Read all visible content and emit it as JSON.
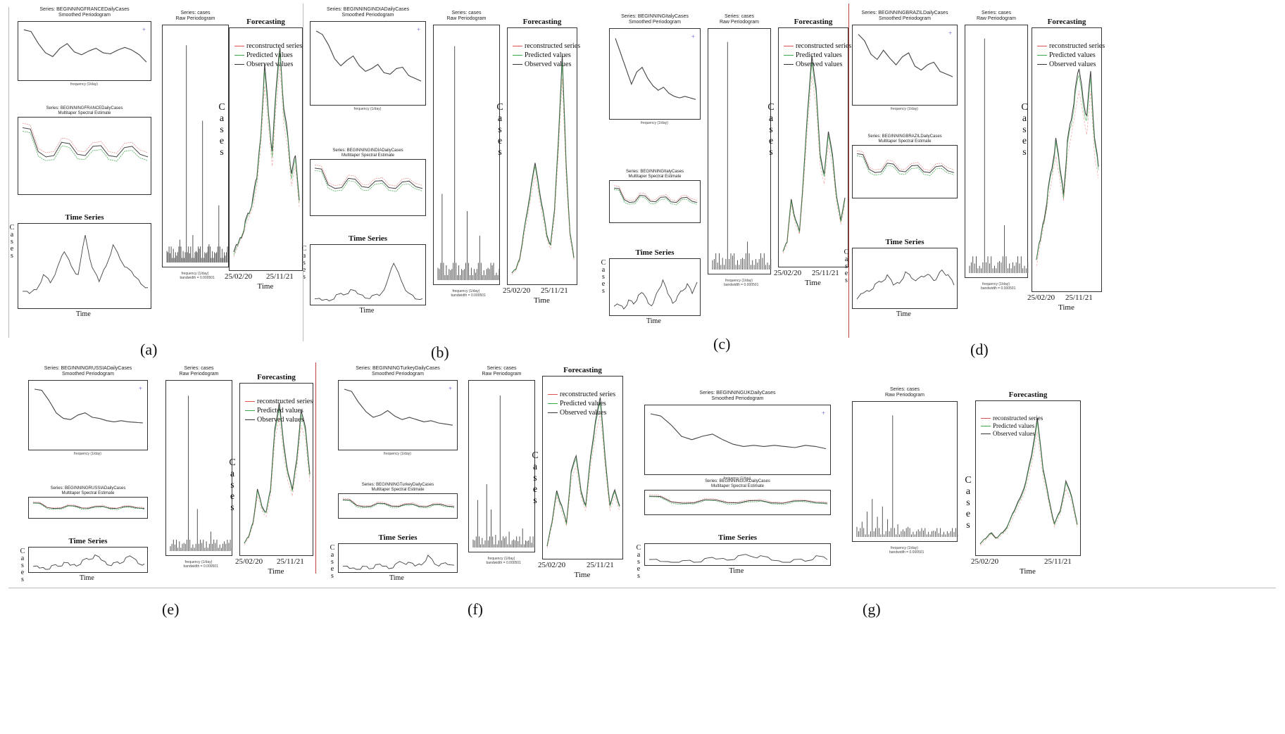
{
  "captions": [
    "(a)",
    "(b)",
    "(c)",
    "(d)",
    "(e)",
    "(f)",
    "(g)"
  ],
  "series_titles": {
    "a": "Series: BEGINNINGFRANCEDailyCases",
    "b": "Series: BEGINNINGINDIADailyCases",
    "c": "Series: BEGINNINGItalyCases",
    "d": "Series: BEGINNINGBRAZILDailyCases",
    "e": "Series: BEGINNINGRUSSIADailyCases",
    "f": "Series: BEGINNINGTurkeyDailyCases",
    "g": "Series: BEGINNINGUKDailyCases"
  },
  "labels": {
    "smoothed": "Smoothed Periodogram",
    "multitaper": "Multitaper Spectral Estimate",
    "raw_series": "Series: cases",
    "raw": "Raw Periodogram",
    "forecasting": "Forecasting",
    "time_series": "Time Series",
    "time": "Time",
    "cases_letters": [
      "C",
      "a",
      "s",
      "e",
      "s"
    ],
    "freq": "frequency (1/day)",
    "bandwidth_raw": "bandwidth = 0.000501",
    "start_date": "25/02/20",
    "end_date": "25/11/21"
  },
  "legend": [
    {
      "label": "reconstructed series",
      "color": "#e05050"
    },
    {
      "label": "Predicted values",
      "color": "#3aa84a"
    },
    {
      "label": "Observed values",
      "color": "#333333"
    }
  ],
  "colors": {
    "observed": "#444444",
    "predicted": "#3aa84a",
    "reconstructed": "#e05050",
    "bound": "#e88a8a"
  },
  "chart_data": [
    {
      "panel": "a",
      "type": "line",
      "description": "smoothed periodogram, multitaper estimate, raw periodogram, time series and forecast for France",
      "smoothed": [
        10,
        9.6,
        7,
        5,
        4.2,
        6,
        7,
        5.2,
        4.6,
        5.4,
        6,
        5,
        4.8,
        5.6,
        6.2,
        5.6,
        4.6,
        3
      ],
      "raw_peaks": [
        0.5,
        0.4,
        0.6,
        0.3,
        1,
        0.5,
        9.5,
        0.4,
        1.2,
        0.5,
        0.6,
        6.2,
        0.4,
        0.8,
        0.5,
        0.4,
        2.5,
        0.6,
        0.3
      ],
      "series": [
        2,
        2,
        3,
        5,
        4,
        6,
        9,
        7,
        5,
        12,
        6,
        4,
        7,
        10,
        8,
        6,
        5,
        4,
        3
      ],
      "forecast": [
        0.5,
        1,
        1.5,
        2,
        2.5,
        3,
        4,
        6,
        9,
        7,
        5,
        8,
        10,
        7,
        6,
        4,
        5,
        3
      ]
    },
    {
      "panel": "b",
      "type": "line",
      "description": "India",
      "smoothed": [
        10,
        9.5,
        8,
        6,
        5,
        5.8,
        6.4,
        5,
        4.2,
        4.6,
        5.2,
        4,
        3.8,
        4.6,
        4.8,
        3.6,
        3.2,
        2.8
      ],
      "raw_peaks": [
        0.5,
        3.5,
        0.6,
        0.4,
        9.5,
        0.6,
        0.4,
        2.8,
        0.5,
        0.3,
        1.8,
        0.4,
        0.5,
        0.6,
        0.3
      ],
      "series": [
        0.2,
        0.4,
        0.8,
        1.5,
        2,
        2.5,
        2,
        1.5,
        1.3,
        1.8,
        4,
        9.5,
        6,
        2,
        1,
        0.8
      ],
      "forecast": [
        0.3,
        0.5,
        1,
        2,
        3,
        4,
        5,
        4,
        3,
        2,
        1.5,
        3,
        6,
        9.5,
        5,
        2,
        1
      ]
    },
    {
      "panel": "c",
      "type": "line",
      "description": "Italy",
      "smoothed": [
        10,
        8,
        6,
        4,
        5.6,
        6.2,
        4.8,
        3.8,
        3.2,
        3.6,
        2.8,
        2.4,
        2.2,
        2.4,
        2.2,
        2
      ],
      "raw_peaks": [
        0.4,
        0.3,
        0.5,
        9.8,
        0.6,
        0.4,
        0.5,
        1.2,
        0.4,
        0.3,
        0.5,
        0.3
      ],
      "series": [
        1,
        2,
        1.5,
        3,
        2.5,
        4,
        5,
        3,
        2,
        6,
        8,
        5,
        3,
        4,
        6,
        7,
        5,
        8
      ],
      "forecast": [
        0.5,
        1,
        3,
        2,
        1.5,
        4,
        7,
        9.5,
        8,
        5,
        4,
        6,
        5,
        3,
        2,
        3
      ]
    },
    {
      "panel": "d",
      "type": "line",
      "description": "Brazil",
      "smoothed": [
        10,
        9,
        7,
        6.2,
        7.6,
        6.4,
        5.4,
        6.6,
        7.2,
        5.2,
        4.6,
        5.4,
        5.8,
        4.4,
        4,
        3.6
      ],
      "raw_peaks": [
        0.3,
        0.4,
        0.3,
        9.8,
        0.4,
        0.3,
        0.5,
        2,
        0.4,
        0.3,
        0.4,
        0.3
      ],
      "series": [
        1,
        3,
        4,
        5,
        6,
        7,
        5,
        6,
        8,
        7,
        6,
        7,
        8,
        6,
        9,
        7,
        5
      ],
      "forecast": [
        1,
        2,
        3,
        4,
        5,
        6,
        5,
        4,
        6,
        7,
        8,
        9,
        8,
        7,
        9,
        6,
        5
      ]
    },
    {
      "panel": "e",
      "type": "line",
      "description": "Russia",
      "smoothed": [
        10,
        9.8,
        8,
        5.8,
        4.8,
        4.6,
        5.4,
        5.8,
        5,
        4.8,
        4.4,
        4.2,
        4.4,
        4.2,
        4.1,
        4
      ],
      "raw_peaks": [
        0.3,
        0.4,
        0.6,
        0.5,
        9.6,
        0.4,
        2.6,
        0.5,
        0.6,
        1.2,
        0.5,
        0.4,
        0.6,
        0.5
      ],
      "series": [
        0.5,
        1,
        1.5,
        2,
        3,
        3.5,
        3,
        4,
        6,
        8,
        9,
        7,
        5,
        4,
        5,
        7,
        9,
        6,
        4
      ],
      "forecast": [
        0.5,
        1,
        2,
        4,
        3,
        2.5,
        4,
        8,
        9.5,
        7,
        5,
        4,
        6,
        9,
        8,
        5
      ]
    },
    {
      "panel": "f",
      "type": "line",
      "description": "Turkey",
      "smoothed": [
        10,
        9.6,
        7.6,
        6,
        5,
        5.4,
        6.2,
        5.2,
        4.6,
        5,
        4.6,
        4.2,
        4.4,
        4,
        3.8,
        3.6
      ],
      "raw_peaks": [
        0.5,
        3,
        0.6,
        4,
        2.4,
        0.8,
        9.6,
        0.6,
        1,
        0.5,
        0.4,
        1.2,
        0.4,
        0.3
      ],
      "series": [
        0.5,
        0.6,
        1,
        1.2,
        1,
        1.5,
        2,
        1.8,
        2.5,
        5,
        3,
        2,
        4,
        8,
        4,
        2,
        3,
        2.5
      ],
      "forecast": [
        0.5,
        2,
        4,
        3,
        2,
        5,
        6,
        4,
        3,
        6,
        8,
        9.5,
        6,
        3,
        4,
        3
      ]
    },
    {
      "panel": "g",
      "type": "line",
      "description": "UK",
      "smoothed": [
        10,
        9.6,
        8,
        6,
        5.4,
        6,
        6.4,
        5.4,
        4.6,
        4.2,
        4.4,
        4.2,
        4.4,
        4.2,
        4,
        4.4,
        4.2,
        3.8
      ],
      "raw_peaks": [
        0.8,
        1.2,
        2,
        3,
        1.6,
        2.4,
        1.4,
        9.6,
        1,
        0.6,
        0.8,
        0.4,
        0.6,
        0.5,
        0.4,
        0.5,
        0.3,
        0.4,
        0.3,
        0.4
      ],
      "series": [
        0.5,
        0.8,
        0.6,
        0.5,
        1,
        1.5,
        3,
        4,
        5,
        7,
        4,
        2,
        1,
        1.5,
        2,
        4,
        2.5
      ],
      "forecast": [
        0.5,
        1,
        1.5,
        1,
        1.5,
        2,
        3,
        4,
        5,
        7,
        9.5,
        6,
        4,
        2,
        3,
        5,
        4,
        2
      ]
    }
  ]
}
